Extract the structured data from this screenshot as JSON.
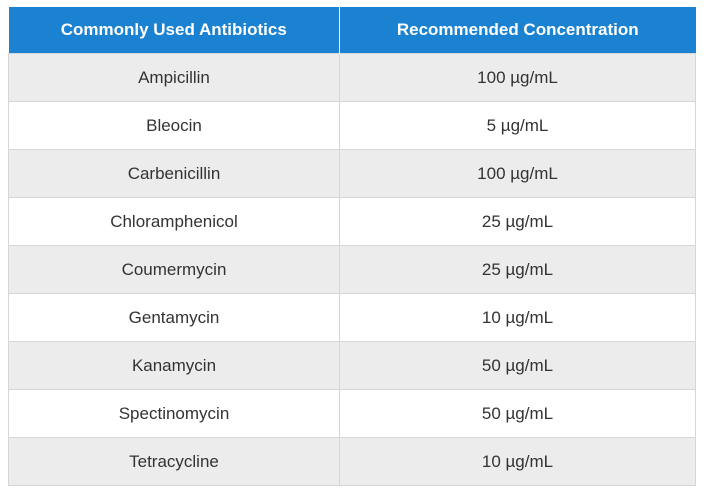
{
  "table": {
    "headers": [
      "Commonly Used Antibiotics",
      "Recommended Concentration"
    ],
    "rows": [
      [
        "Ampicillin",
        "100 µg/mL"
      ],
      [
        "Bleocin",
        "5 µg/mL"
      ],
      [
        "Carbenicillin",
        "100 µg/mL"
      ],
      [
        "Chloramphenicol",
        "25 µg/mL"
      ],
      [
        "Coumermycin",
        "25 µg/mL"
      ],
      [
        "Gentamycin",
        "10 µg/mL"
      ],
      [
        "Kanamycin",
        "50 µg/mL"
      ],
      [
        "Spectinomycin",
        "50 µg/mL"
      ],
      [
        "Tetracycline",
        "10 µg/mL"
      ]
    ]
  },
  "colors": {
    "header_background": "#1a82d1",
    "header_text": "#ffffff",
    "row_shaded": "#ececec",
    "row_plain": "#ffffff",
    "border": "#d6d6d6",
    "body_text": "#333333"
  }
}
